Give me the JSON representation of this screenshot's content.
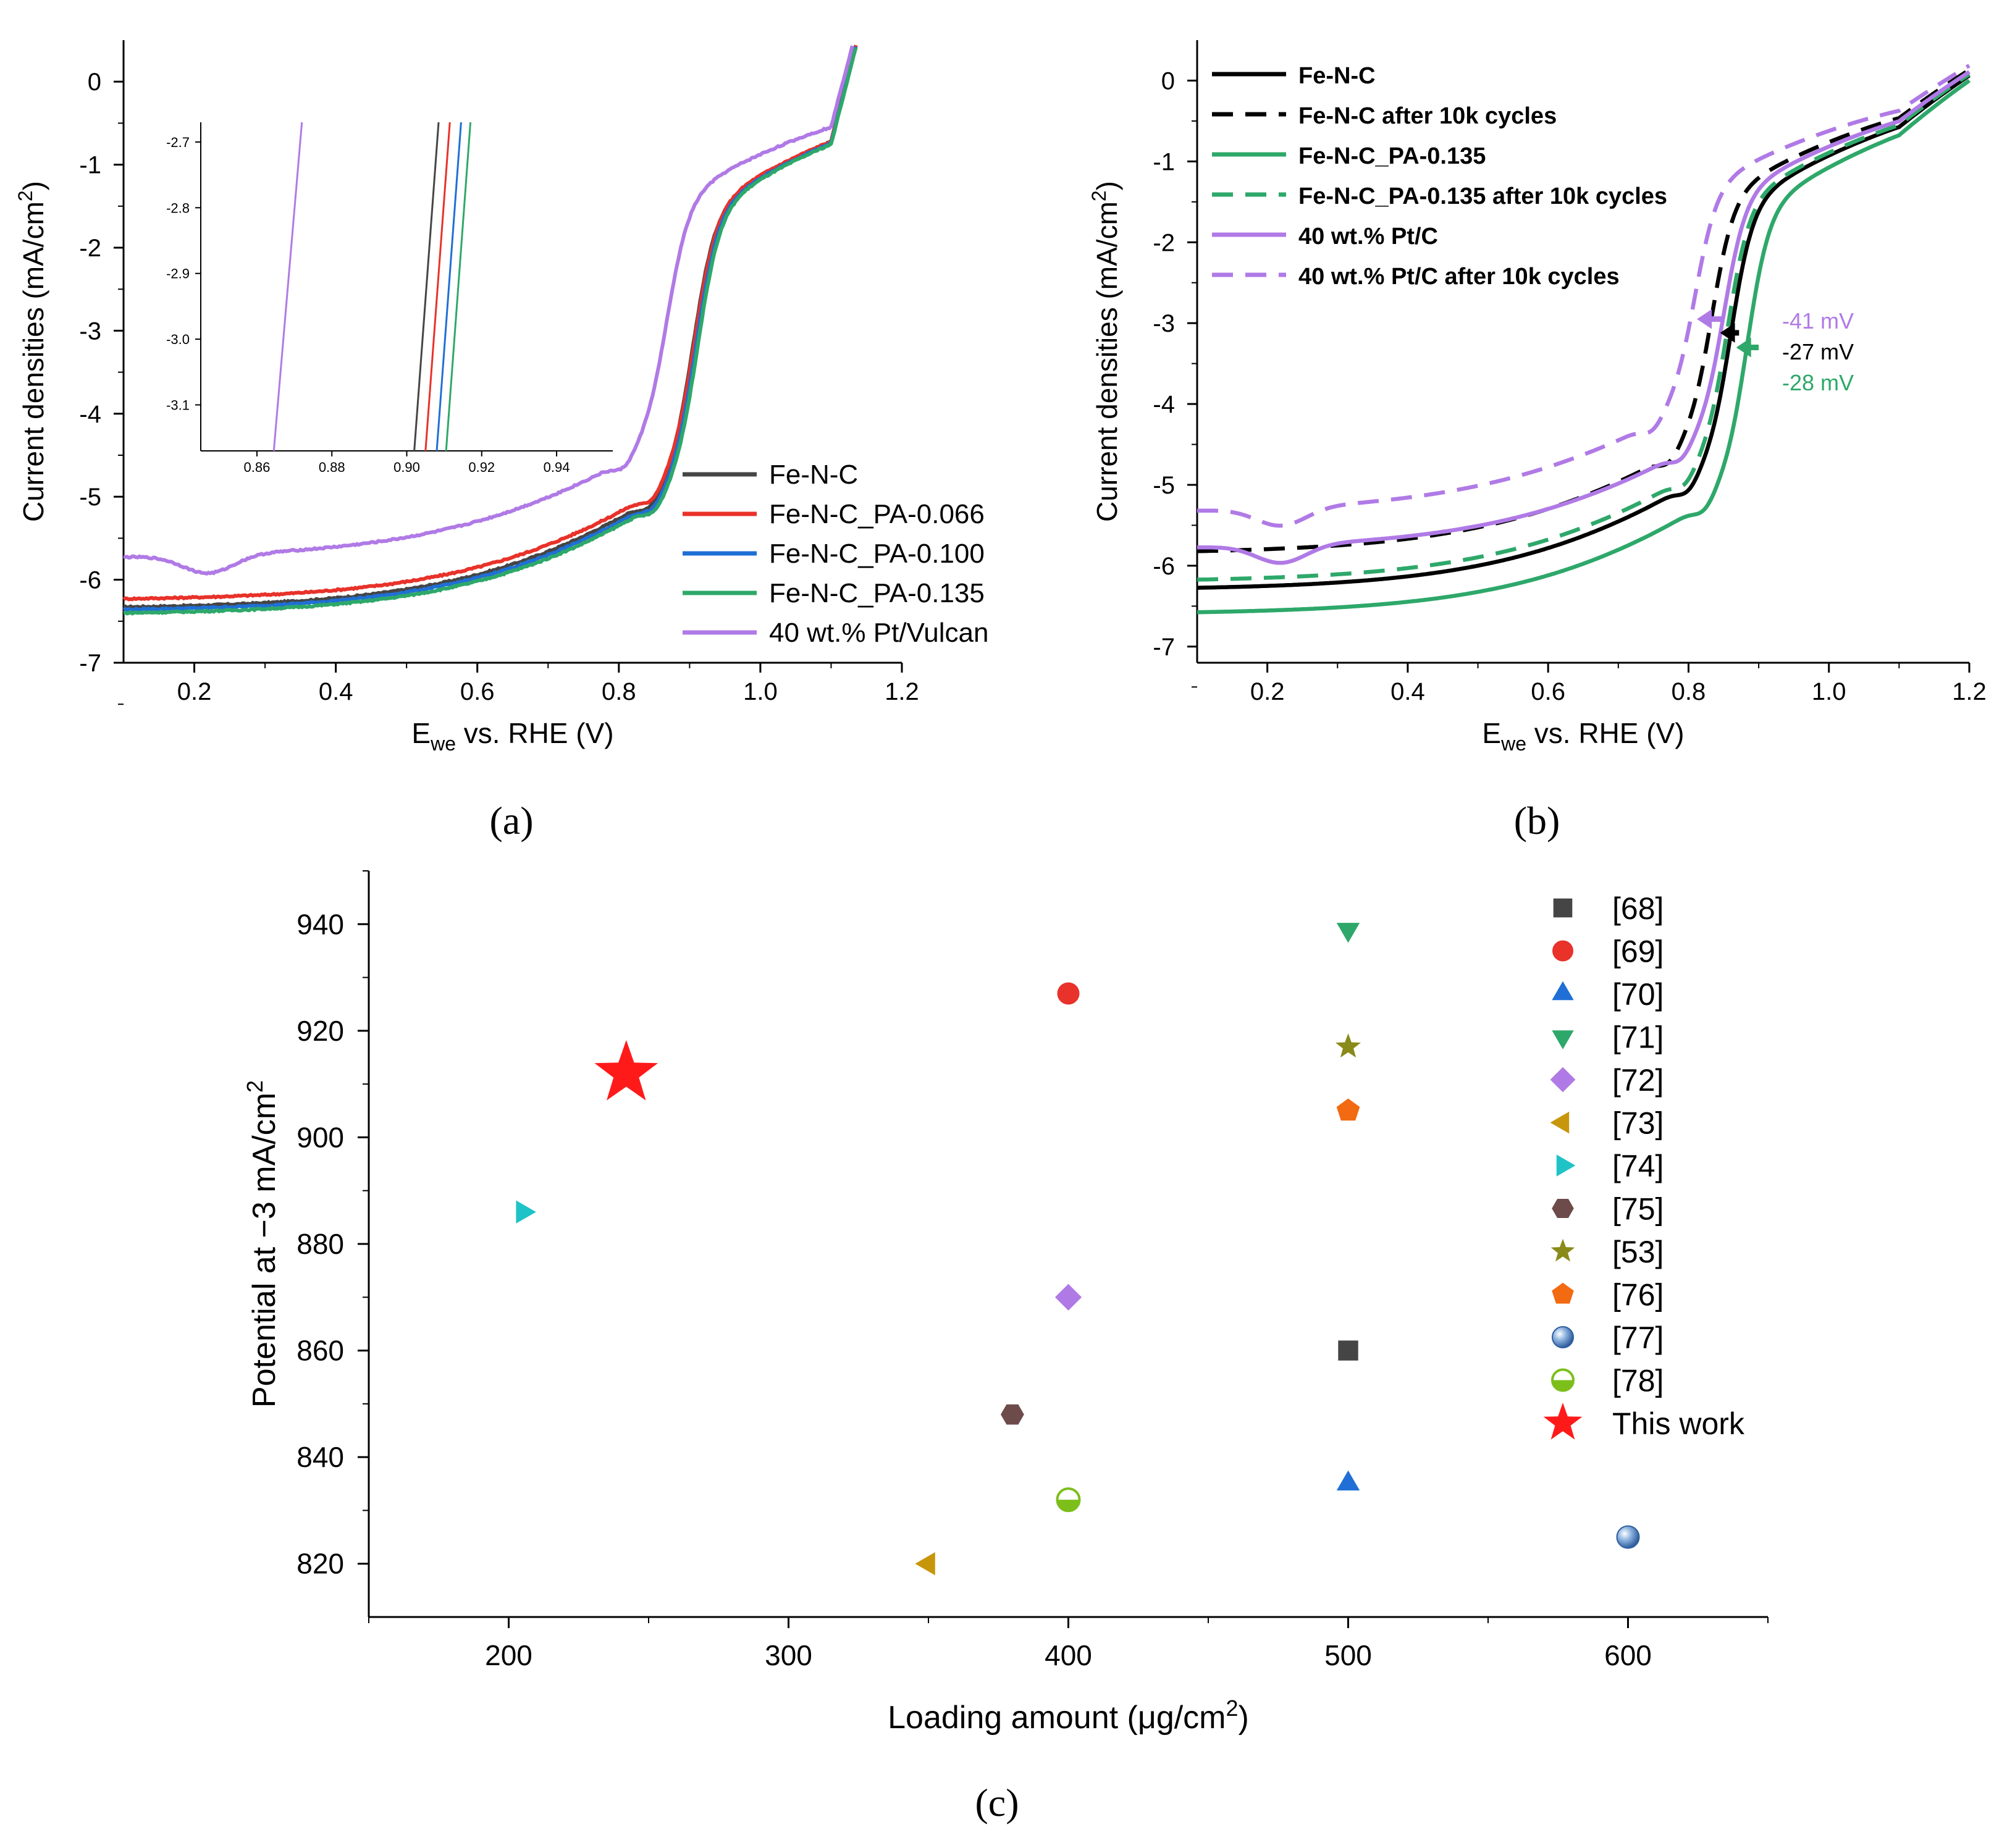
{
  "colors": {
    "black": "#000000",
    "red": "#e8322a",
    "blue": "#1f6fd6",
    "green": "#2ea86a",
    "purple": "#b07ae6",
    "dark_gray": "#454545"
  },
  "chart_data": [
    {
      "panel": "a",
      "panel_label": "(a)",
      "type": "line",
      "xlabel_main": "E",
      "xlabel_sub": "we",
      "xlabel_rest": " vs. RHE (V)",
      "ylabel": "Current densities (mA/cm",
      "ylabel_sup": "2",
      "ylabel_end": ")",
      "xlim": [
        0.1,
        1.2
      ],
      "ylim": [
        -7,
        0.5
      ],
      "xticks": [
        "0.2",
        "0.4",
        "0.6",
        "0.8",
        "1.0",
        "1.2"
      ],
      "yticks": [
        "0",
        "-1",
        "-2",
        "-3",
        "-4",
        "-5",
        "-6",
        "-7"
      ],
      "series": [
        {
          "name": "Fe-N-C",
          "color": "#454545",
          "dash": "solid",
          "onset": 0.92,
          "halfwave": 0.905,
          "limiting": -6.35
        },
        {
          "name": "Fe-N-C_PA-0.066",
          "color": "#e8322a",
          "dash": "solid",
          "onset": 0.92,
          "halfwave": 0.907,
          "limiting": -6.25
        },
        {
          "name": "Fe-N-C_PA-0.100",
          "color": "#1f6fd6",
          "dash": "solid",
          "onset": 0.92,
          "halfwave": 0.909,
          "limiting": -6.38
        },
        {
          "name": "Fe-N-C_PA-0.135",
          "color": "#2ea86a",
          "dash": "solid",
          "onset": 0.92,
          "halfwave": 0.911,
          "limiting": -6.42
        },
        {
          "name": "40 wt.% Pt/Vulcan",
          "color": "#b07ae6",
          "dash": "solid",
          "onset": 0.95,
          "halfwave": 0.868,
          "limiting": -5.75
        }
      ],
      "inset": {
        "xlim": [
          0.845,
          0.955
        ],
        "ylim": [
          -3.17,
          -2.67
        ],
        "xticks": [
          "0.86",
          "0.88",
          "0.90",
          "0.92",
          "0.94"
        ],
        "yticks": [
          "-2.7",
          "-2.8",
          "-2.9",
          "-3.0",
          "-3.1"
        ],
        "lines": [
          {
            "color": "#b07ae6",
            "x_at_bottom": 0.8645,
            "x_at_top": 0.872
          },
          {
            "color": "#454545",
            "x_at_bottom": 0.902,
            "x_at_top": 0.9085
          },
          {
            "color": "#e8322a",
            "x_at_bottom": 0.905,
            "x_at_top": 0.9115
          },
          {
            "color": "#1f6fd6",
            "x_at_bottom": 0.908,
            "x_at_top": 0.9145
          },
          {
            "color": "#2ea86a",
            "x_at_bottom": 0.9105,
            "x_at_top": 0.917
          }
        ]
      }
    },
    {
      "panel": "b",
      "panel_label": "(b)",
      "type": "line",
      "xlabel_main": "E",
      "xlabel_sub": "we",
      "xlabel_rest": " vs. RHE (V)",
      "ylabel": "Current densities (mA/cm",
      "ylabel_sup": "2",
      "ylabel_end": ")",
      "xlim": [
        0.1,
        1.2
      ],
      "ylim": [
        -7.2,
        0.5
      ],
      "xticks": [
        "0.2",
        "0.4",
        "0.6",
        "0.8",
        "1.0",
        "1.2"
      ],
      "yticks": [
        "0",
        "-1",
        "-2",
        "-3",
        "-4",
        "-5",
        "-6",
        "-7"
      ],
      "series": [
        {
          "name": "Fe-N-C",
          "color": "#000000",
          "dash": "solid",
          "onset": 0.93,
          "halfwave": 0.86,
          "limiting": -6.3
        },
        {
          "name": "Fe-N-C after 10k cycles",
          "color": "#000000",
          "dash": "dashed",
          "onset": 0.92,
          "halfwave": 0.833,
          "limiting": -5.85
        },
        {
          "name": "Fe-N-C_PA-0.135",
          "color": "#2ea86a",
          "dash": "solid",
          "onset": 0.95,
          "halfwave": 0.883,
          "limiting": -6.6
        },
        {
          "name": "Fe-N-C_PA-0.135 after 10k cycles",
          "color": "#2ea86a",
          "dash": "dashed",
          "onset": 0.94,
          "halfwave": 0.855,
          "limiting": -6.2
        },
        {
          "name": "40 wt.% Pt/C",
          "color": "#b07ae6",
          "dash": "solid",
          "onset": 0.95,
          "halfwave": 0.85,
          "limiting": -5.8
        },
        {
          "name": "40 wt.% Pt/C after 10k cycles",
          "color": "#b07ae6",
          "dash": "dashed",
          "onset": 0.93,
          "halfwave": 0.809,
          "limiting": -5.35
        }
      ],
      "annotations": [
        {
          "text": "-41 mV",
          "color": "#b07ae6"
        },
        {
          "text": "-27 mV",
          "color": "#000000"
        },
        {
          "text": "-28 mV",
          "color": "#2ea86a"
        }
      ]
    },
    {
      "panel": "c",
      "panel_label": "(c)",
      "type": "scatter",
      "xlabel": "Loading amount (μg/cm",
      "xlabel_sup": "2",
      "xlabel_end": ")",
      "ylabel": "Potential at −3 mA/cm",
      "ylabel_sup": "2",
      "xlim": [
        150,
        650
      ],
      "ylim": [
        810,
        950
      ],
      "xticks": [
        "200",
        "300",
        "400",
        "500",
        "600"
      ],
      "yticks": [
        "820",
        "840",
        "860",
        "880",
        "900",
        "920",
        "940"
      ],
      "points": [
        {
          "label": "[68]",
          "x": 500,
          "y": 860,
          "marker": "square",
          "color": "#454545"
        },
        {
          "label": "[69]",
          "x": 400,
          "y": 927,
          "marker": "circle",
          "color": "#e8322a"
        },
        {
          "label": "[70]",
          "x": 500,
          "y": 835,
          "marker": "triangle-up",
          "color": "#1f6fd6"
        },
        {
          "label": "[71]",
          "x": 500,
          "y": 939,
          "marker": "triangle-down",
          "color": "#2ea86a"
        },
        {
          "label": "[72]",
          "x": 400,
          "y": 870,
          "marker": "diamond",
          "color": "#b07ae6"
        },
        {
          "label": "[73]",
          "x": 350,
          "y": 820,
          "marker": "triangle-left",
          "color": "#c8960a"
        },
        {
          "label": "[74]",
          "x": 205,
          "y": 886,
          "marker": "triangle-right",
          "color": "#1ec3c8"
        },
        {
          "label": "[75]",
          "x": 380,
          "y": 848,
          "marker": "hexagon",
          "color": "#6e4b4b"
        },
        {
          "label": "[53]",
          "x": 500,
          "y": 917,
          "marker": "star-small",
          "color": "#8a8a1a"
        },
        {
          "label": "[76]",
          "x": 500,
          "y": 905,
          "marker": "pentagon",
          "color": "#f26a12"
        },
        {
          "label": "[77]",
          "x": 600,
          "y": 825,
          "marker": "sphere",
          "color": "#5a8ac8"
        },
        {
          "label": "[78]",
          "x": 400,
          "y": 832,
          "marker": "half-circle",
          "color": "#7cbf1a"
        },
        {
          "label": "This work",
          "x": 242,
          "y": 912,
          "marker": "star-big",
          "color": "#ff1a1a"
        }
      ]
    }
  ]
}
